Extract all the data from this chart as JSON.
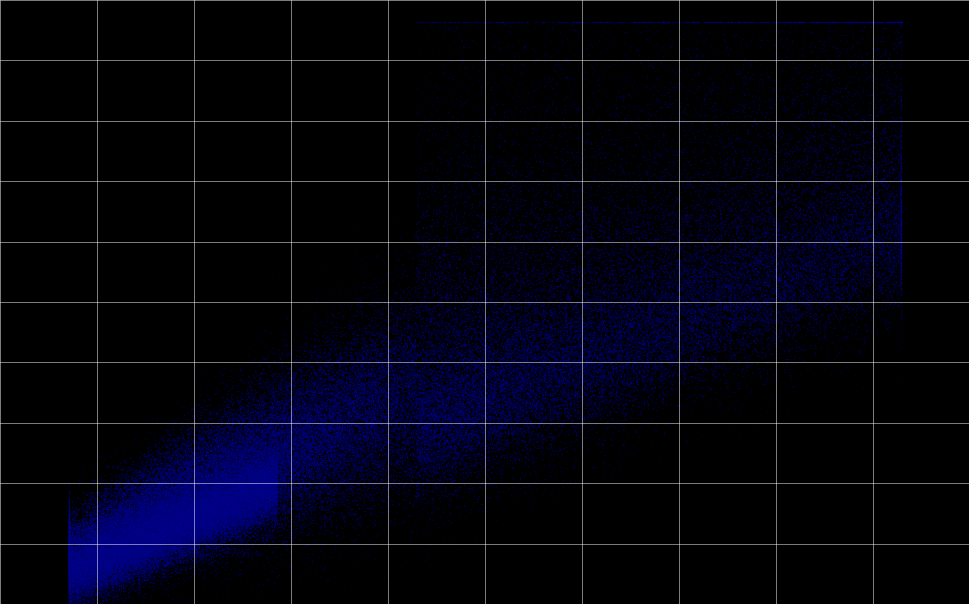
{
  "background_color": "#000000",
  "plot_bg_color": "#000000",
  "dot_color": "#00008B",
  "dot_alpha": 0.5,
  "dot_size": 1.0,
  "grid_color": "#FFFFFF",
  "grid_alpha": 0.7,
  "grid_linewidth": 0.5,
  "xlim": [
    0,
    140
  ],
  "ylim": [
    0,
    140
  ],
  "n_points": 80000,
  "seed": 42
}
